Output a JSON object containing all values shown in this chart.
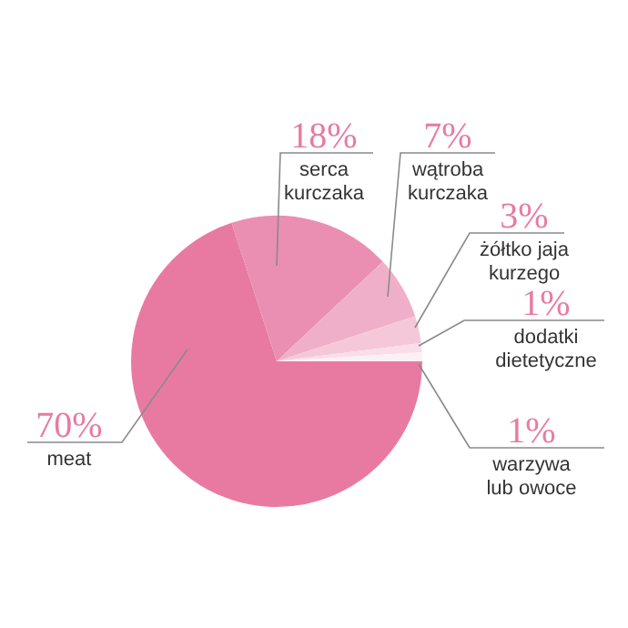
{
  "chart_data": {
    "type": "pie",
    "categories": [
      "meat",
      "serca kurczaka",
      "wątroba kurczaka",
      "żółtko jaja kurzego",
      "dodatki dietetyczne",
      "warzywa lub owoce"
    ],
    "values": [
      70,
      18,
      7,
      3,
      1,
      1
    ],
    "colors": [
      "#e87aa2",
      "#ea8fb1",
      "#f0afc8",
      "#f5c8d9",
      "#f9dde8",
      "#fdf0f5"
    ],
    "value_labels": [
      "70%",
      "18%",
      "7%",
      "3%",
      "1%",
      "1%"
    ],
    "legend": false
  }
}
